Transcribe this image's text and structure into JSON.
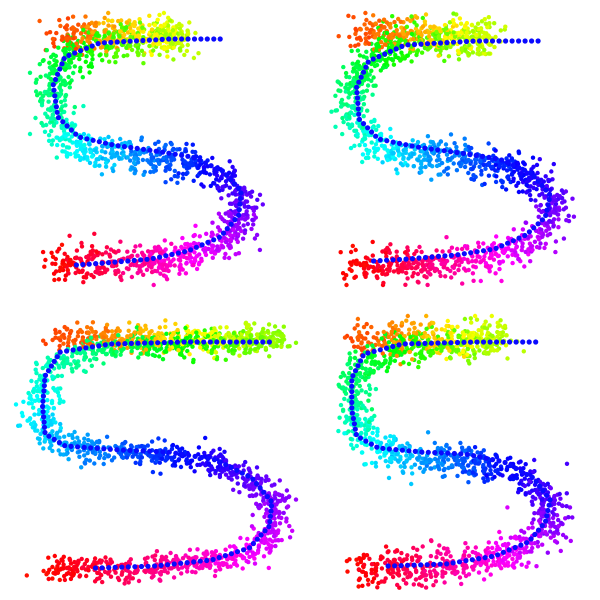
{
  "chart_data": [
    {
      "type": "scatter",
      "title": "",
      "xlabel": "",
      "ylabel": "",
      "grid": false,
      "axes_visible": false,
      "colormap": "hsv",
      "point_color": "#0a0aff",
      "cloud_size": 1500,
      "seed": 11,
      "spread": [
        1.0,
        1.0
      ],
      "path": [
        [
          1.0,
          10.0
        ],
        [
          6.6,
          10.0
        ],
        [
          6.6,
          9.8
        ],
        [
          3.0,
          9.6
        ],
        [
          1.4,
          8.6
        ],
        [
          1.0,
          7.6
        ],
        [
          1.0,
          5.8
        ],
        [
          1.6,
          4.6
        ],
        [
          3.0,
          4.1
        ],
        [
          5.0,
          3.9
        ],
        [
          7.0,
          3.5
        ],
        [
          8.3,
          2.9
        ],
        [
          9.1,
          2.0
        ],
        [
          9.2,
          1.0
        ],
        [
          8.7,
          0.0
        ],
        [
          7.4,
          -0.8
        ],
        [
          5.6,
          -1.3
        ],
        [
          3.7,
          -1.5
        ],
        [
          1.0,
          -1.5
        ]
      ],
      "principal_curve": [
        [
          8.2,
          9.8
        ],
        [
          6.0,
          9.8
        ],
        [
          3.0,
          9.6
        ],
        [
          1.5,
          8.9
        ],
        [
          1.0,
          7.5
        ],
        [
          1.2,
          5.9
        ],
        [
          2.1,
          4.9
        ],
        [
          3.6,
          4.5
        ],
        [
          5.4,
          4.2
        ],
        [
          7.0,
          3.9
        ],
        [
          8.3,
          3.2
        ],
        [
          9.1,
          2.2
        ],
        [
          9.0,
          1.0
        ],
        [
          8.2,
          -0.1
        ],
        [
          6.8,
          -0.8
        ],
        [
          5.2,
          -1.2
        ],
        [
          3.2,
          -1.4
        ],
        [
          2.0,
          -1.5
        ]
      ]
    },
    {
      "type": "scatter",
      "title": "",
      "xlabel": "",
      "ylabel": "",
      "grid": false,
      "axes_visible": false,
      "colormap": "hsv",
      "point_color": "#0a0aff",
      "cloud_size": 1500,
      "seed": 23,
      "spread": [
        1.0,
        1.0
      ],
      "path": [
        [
          1.0,
          10.0
        ],
        [
          6.6,
          10.0
        ],
        [
          6.6,
          9.8
        ],
        [
          3.0,
          9.6
        ],
        [
          1.4,
          8.6
        ],
        [
          1.0,
          7.6
        ],
        [
          1.0,
          5.8
        ],
        [
          1.6,
          4.6
        ],
        [
          3.0,
          4.1
        ],
        [
          5.0,
          3.9
        ],
        [
          7.0,
          3.5
        ],
        [
          8.3,
          2.9
        ],
        [
          9.1,
          2.0
        ],
        [
          9.2,
          1.0
        ],
        [
          8.7,
          0.0
        ],
        [
          7.4,
          -0.8
        ],
        [
          5.6,
          -1.3
        ],
        [
          3.7,
          -1.5
        ],
        [
          1.0,
          -1.5
        ]
      ],
      "principal_curve": [
        [
          8.6,
          9.7
        ],
        [
          6.0,
          9.7
        ],
        [
          3.1,
          9.5
        ],
        [
          1.6,
          8.7
        ],
        [
          1.1,
          7.4
        ],
        [
          1.2,
          5.8
        ],
        [
          2.0,
          4.8
        ],
        [
          3.6,
          4.4
        ],
        [
          5.4,
          4.1
        ],
        [
          7.0,
          3.8
        ],
        [
          8.3,
          3.1
        ],
        [
          9.1,
          2.0
        ],
        [
          8.9,
          0.9
        ],
        [
          8.1,
          0.0
        ],
        [
          6.8,
          -0.7
        ],
        [
          5.2,
          -1.0
        ],
        [
          3.2,
          -1.2
        ],
        [
          1.8,
          -1.3
        ]
      ]
    },
    {
      "type": "scatter",
      "title": "",
      "xlabel": "",
      "ylabel": "",
      "grid": false,
      "axes_visible": false,
      "colormap": "hsv",
      "point_color": "#0a0aff",
      "cloud_size": 1700,
      "seed": 37,
      "spread": [
        1.0,
        0.75
      ],
      "path": [
        [
          1.0,
          10.0
        ],
        [
          9.8,
          10.0
        ],
        [
          9.8,
          9.8
        ],
        [
          3.0,
          9.6
        ],
        [
          1.0,
          8.8
        ],
        [
          0.4,
          7.6
        ],
        [
          0.4,
          5.8
        ],
        [
          1.0,
          4.8
        ],
        [
          3.0,
          4.3
        ],
        [
          5.0,
          4.2
        ],
        [
          7.0,
          3.9
        ],
        [
          8.5,
          3.2
        ],
        [
          9.6,
          2.0
        ],
        [
          9.8,
          1.0
        ],
        [
          9.4,
          -0.2
        ],
        [
          8.1,
          -1.0
        ],
        [
          6.2,
          -1.4
        ],
        [
          3.7,
          -1.5
        ],
        [
          0.8,
          -1.5
        ]
      ],
      "principal_curve": [
        [
          9.5,
          9.8
        ],
        [
          6.0,
          9.8
        ],
        [
          3.2,
          9.7
        ],
        [
          1.2,
          9.3
        ],
        [
          0.6,
          8.1
        ],
        [
          0.5,
          6.6
        ],
        [
          0.6,
          5.2
        ],
        [
          1.4,
          4.6
        ],
        [
          3.6,
          4.4
        ],
        [
          5.5,
          4.3
        ],
        [
          7.4,
          3.9
        ],
        [
          8.8,
          3.0
        ],
        [
          9.6,
          1.8
        ],
        [
          9.5,
          0.6
        ],
        [
          8.7,
          -0.5
        ],
        [
          7.2,
          -1.1
        ],
        [
          5.0,
          -1.4
        ],
        [
          2.6,
          -1.5
        ]
      ]
    },
    {
      "type": "scatter",
      "title": "",
      "xlabel": "",
      "ylabel": "",
      "grid": false,
      "axes_visible": false,
      "colormap": "hsv",
      "point_color": "#0a0aff",
      "cloud_size": 1500,
      "seed": 51,
      "spread": [
        1.0,
        1.0
      ],
      "path": [
        [
          1.0,
          10.0
        ],
        [
          7.0,
          10.0
        ],
        [
          7.0,
          9.8
        ],
        [
          3.0,
          9.6
        ],
        [
          1.4,
          8.6
        ],
        [
          1.0,
          7.6
        ],
        [
          1.0,
          5.8
        ],
        [
          1.6,
          4.6
        ],
        [
          3.0,
          4.1
        ],
        [
          5.0,
          3.9
        ],
        [
          7.0,
          3.5
        ],
        [
          8.3,
          2.9
        ],
        [
          9.1,
          2.0
        ],
        [
          9.2,
          1.0
        ],
        [
          8.7,
          0.0
        ],
        [
          7.4,
          -0.8
        ],
        [
          5.6,
          -1.3
        ],
        [
          3.7,
          -1.5
        ],
        [
          1.0,
          -1.5
        ]
      ],
      "principal_curve": [
        [
          8.5,
          9.8
        ],
        [
          6.0,
          9.8
        ],
        [
          3.0,
          9.7
        ],
        [
          1.4,
          9.2
        ],
        [
          0.9,
          8.0
        ],
        [
          0.9,
          6.4
        ],
        [
          1.1,
          5.1
        ],
        [
          2.0,
          4.5
        ],
        [
          3.8,
          4.3
        ],
        [
          5.6,
          4.2
        ],
        [
          7.2,
          3.8
        ],
        [
          8.4,
          3.0
        ],
        [
          9.1,
          1.9
        ],
        [
          8.9,
          0.8
        ],
        [
          8.2,
          -0.2
        ],
        [
          6.8,
          -0.9
        ],
        [
          4.8,
          -1.3
        ],
        [
          2.4,
          -1.4
        ]
      ]
    }
  ]
}
